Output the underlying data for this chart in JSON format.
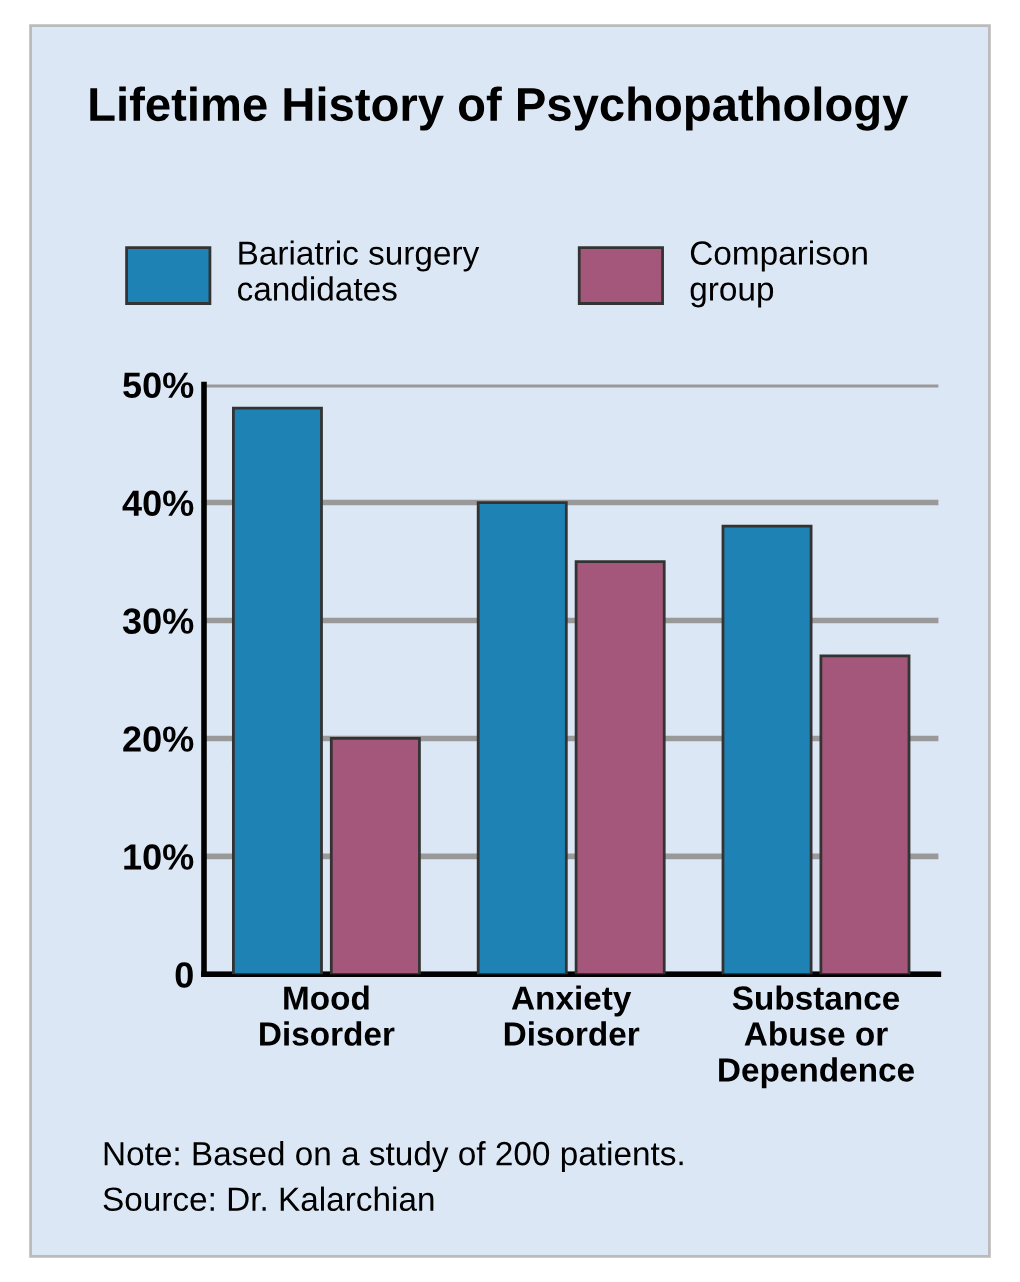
{
  "chart_data": {
    "type": "bar",
    "title": "Lifetime History of Psychopathology",
    "categories": [
      "Mood\nDisorder",
      "Anxiety\nDisorder",
      "Substance\nAbuse or\nDependence"
    ],
    "series": [
      {
        "name": "Bariatric surgery\ncandidates",
        "color": "#1f82b4",
        "values": [
          48,
          40,
          38
        ]
      },
      {
        "name": "Comparison\ngroup",
        "color": "#a4577a",
        "values": [
          20,
          35,
          27
        ]
      }
    ],
    "ylim": [
      0,
      50
    ],
    "yticks": [
      {
        "value": 0,
        "label": "0"
      },
      {
        "value": 10,
        "label": "10%"
      },
      {
        "value": 20,
        "label": "20%"
      },
      {
        "value": 30,
        "label": "30%"
      },
      {
        "value": 40,
        "label": "40%"
      },
      {
        "value": 50,
        "label": "50%"
      }
    ],
    "grid": "y",
    "legend": "top",
    "annotations": [
      "Note: Based on a study of 200 patients.\nSource: Dr. Kalarchian"
    ]
  }
}
